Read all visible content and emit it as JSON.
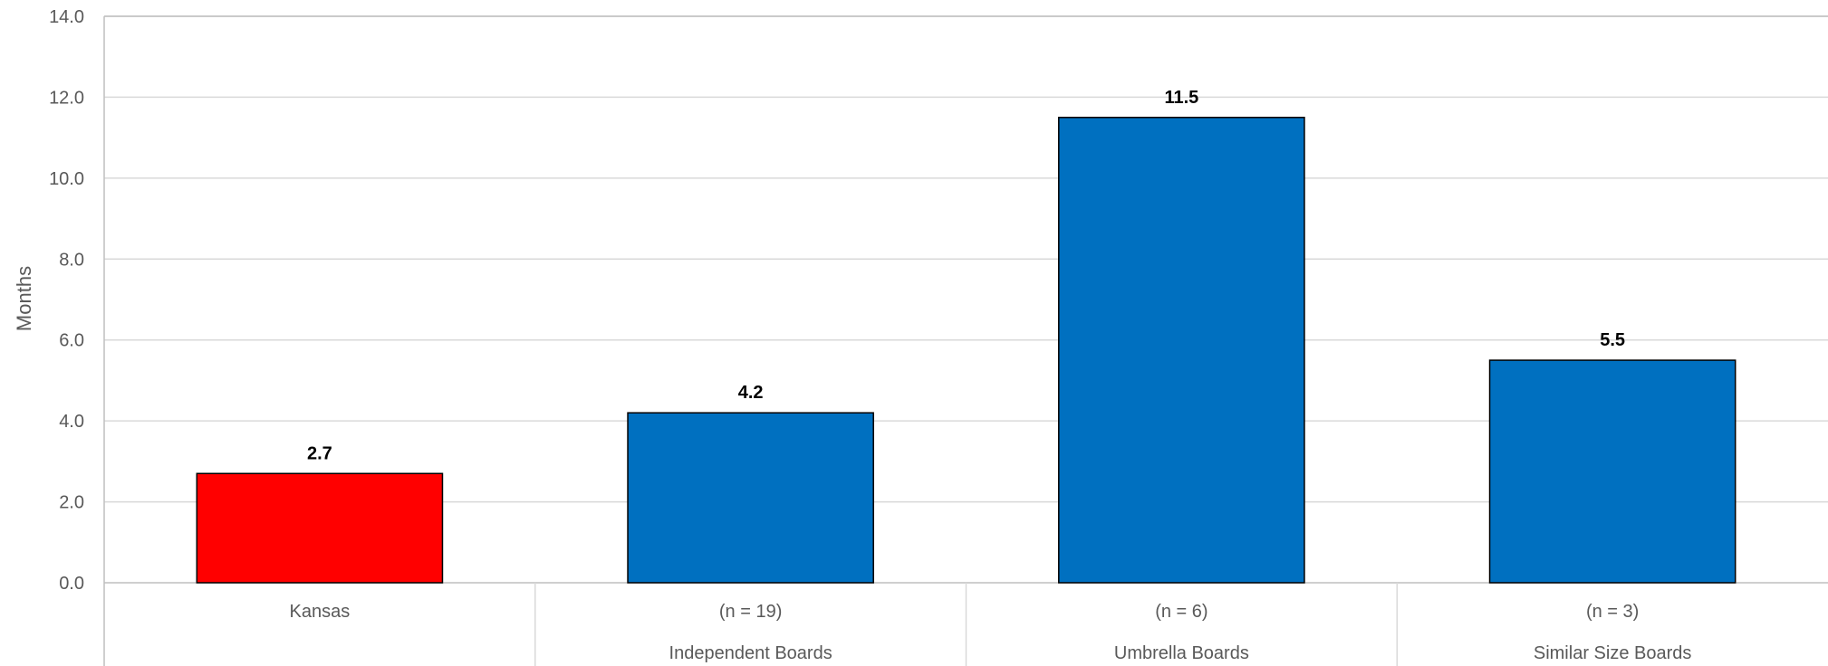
{
  "chart_data": {
    "type": "bar",
    "ylabel": "Months",
    "ylim": [
      0,
      14
    ],
    "ytick_step": 2,
    "grid": true,
    "categories": [
      {
        "top": "Kansas",
        "group": ""
      },
      {
        "top": "(n = 19)",
        "group": "Independent Boards"
      },
      {
        "top": "(n = 6)",
        "group": "Umbrella Boards"
      },
      {
        "top": "(n = 3)",
        "group": "Similar Size Boards"
      }
    ],
    "values": [
      2.7,
      4.2,
      11.5,
      5.5
    ],
    "data_labels": [
      "2.7",
      "4.2",
      "11.5",
      "5.5"
    ],
    "colors": [
      "#FF0000",
      "#0070C0",
      "#0070C0",
      "#0070C0"
    ]
  }
}
